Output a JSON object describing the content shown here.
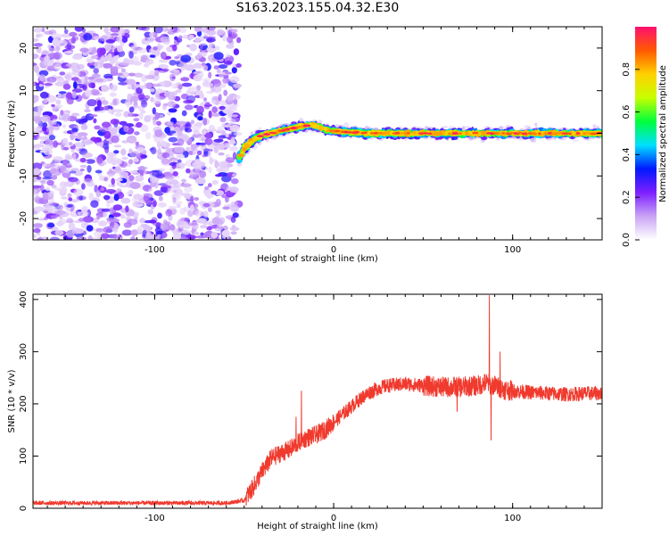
{
  "figure": {
    "title": "S163.2023.155.04.32.E30"
  },
  "chart_data": [
    {
      "type": "heatmap",
      "xlabel": "Height of straight line (km)",
      "ylabel": "Frequency (Hz)",
      "xlim": [
        -168,
        150
      ],
      "ylim": [
        -25,
        25
      ],
      "xticks": [
        -100,
        0,
        100
      ],
      "yticks": [
        -20,
        -10,
        0,
        10,
        20
      ],
      "grid": false,
      "colorbar": {
        "label": "Normalized spectral amplitude",
        "range": [
          0.0,
          1.0
        ],
        "ticks": [
          0.0,
          0.2,
          0.4,
          0.6,
          0.8
        ],
        "colormap": [
          "#ffffff",
          "#c9a3f5",
          "#7d1fff",
          "#0019ff",
          "#00e0ff",
          "#00ff3c",
          "#c8ff00",
          "#ffd000",
          "#ff5a00",
          "#ff1070"
        ]
      },
      "regions": [
        {
          "x_range": [
            -168,
            -53
          ],
          "y_range": [
            -25,
            25
          ],
          "pattern": "speckle",
          "amplitude": [
            0.0,
            0.2
          ]
        },
        {
          "x_range": [
            -53,
            150
          ],
          "pattern": "ridge",
          "amplitude_peak": 1.0
        }
      ],
      "ridge_center": [
        {
          "x": -53,
          "y": -6
        },
        {
          "x": -50,
          "y": -3.5
        },
        {
          "x": -45,
          "y": -1.5
        },
        {
          "x": -40,
          "y": -0.5
        },
        {
          "x": -30,
          "y": 0.5
        },
        {
          "x": -20,
          "y": 1.5
        },
        {
          "x": -12,
          "y": 2
        },
        {
          "x": -5,
          "y": 1
        },
        {
          "x": 0,
          "y": 0.5
        },
        {
          "x": 20,
          "y": 0
        },
        {
          "x": 60,
          "y": 0
        },
        {
          "x": 100,
          "y": 0
        },
        {
          "x": 150,
          "y": 0
        }
      ]
    },
    {
      "type": "line",
      "xlabel": "Height of straight line (km)",
      "ylabel": "SNR (10 * v/v)",
      "xlim": [
        -168,
        150
      ],
      "ylim": [
        0,
        410
      ],
      "xticks": [
        -100,
        0,
        100
      ],
      "yticks": [
        0,
        100,
        200,
        300,
        400
      ],
      "grid": false,
      "series": [
        {
          "color": "#f03a2e",
          "x": [
            -168,
            -100,
            -60,
            -50,
            -45,
            -40,
            -35,
            -30,
            -25,
            -20,
            -15,
            -10,
            -5,
            0,
            5,
            10,
            15,
            20,
            25,
            30,
            40,
            50,
            60,
            70,
            80,
            85,
            90,
            95,
            100,
            110,
            120,
            130,
            140,
            150
          ],
          "values": [
            10,
            10,
            10,
            15,
            40,
            70,
            95,
            105,
            112,
            125,
            135,
            140,
            150,
            165,
            180,
            195,
            210,
            222,
            230,
            235,
            238,
            235,
            232,
            232,
            235,
            240,
            235,
            228,
            225,
            222,
            220,
            218,
            220,
            220
          ],
          "spikes": [
            {
              "x": -18,
              "value": 225
            },
            {
              "x": -21,
              "value": 175
            },
            {
              "x": 87,
              "value": 408
            },
            {
              "x": 88,
              "value": 130
            },
            {
              "x": 69,
              "value": 185
            },
            {
              "x": 93,
              "value": 300
            }
          ]
        }
      ]
    }
  ]
}
